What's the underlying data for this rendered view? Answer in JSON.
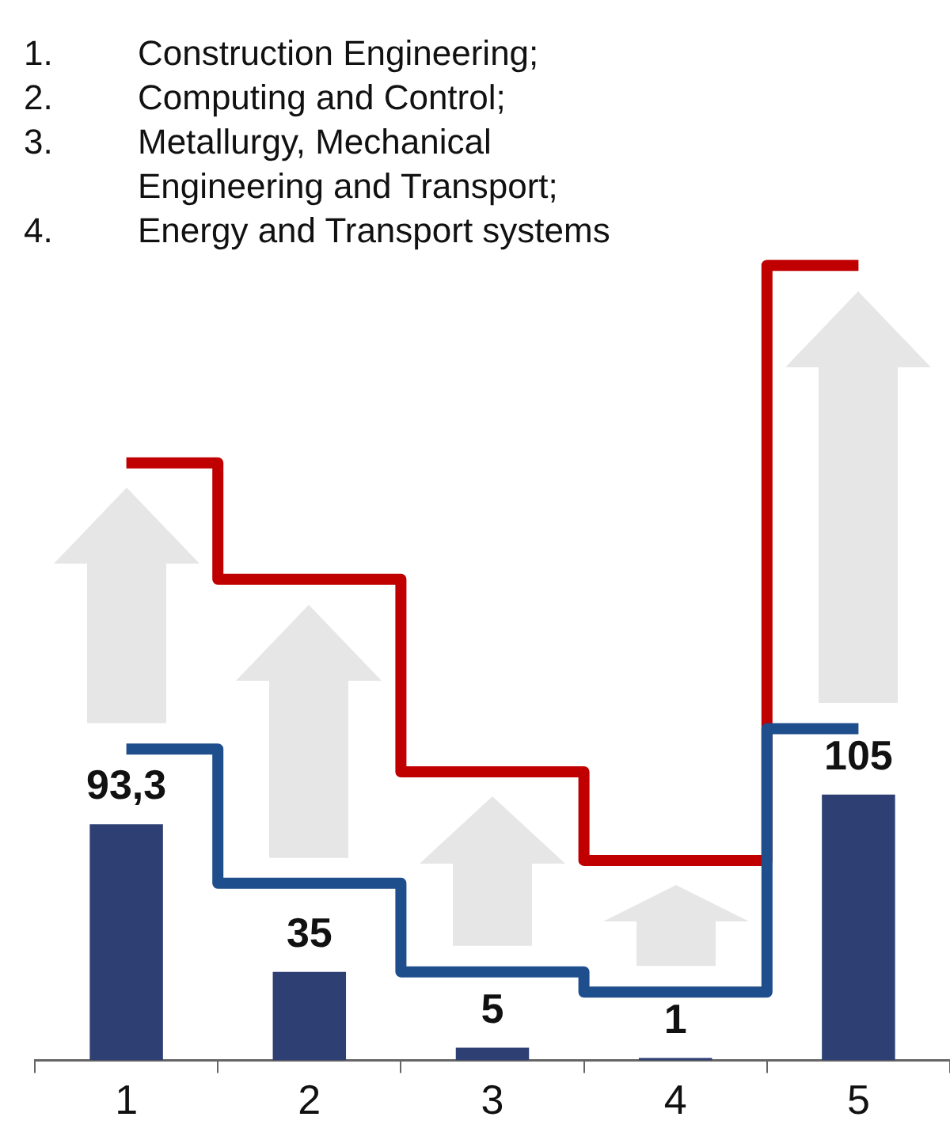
{
  "chart_data": {
    "type": "bar",
    "annotations": [
      "1. Construction Engineering;",
      "2. Computing and Control;",
      "3. Metallurgy, Mechanical Engineering and Transport;",
      "4. Energy and Transport systems"
    ],
    "categories": [
      "1",
      "2",
      "3",
      "4",
      "5"
    ],
    "series": [
      {
        "color": "#2e3f73",
        "values": [
          93.3,
          35,
          5,
          1,
          105
        ],
        "value_labels": [
          "93,3",
          "35",
          "5",
          "1",
          "105"
        ]
      },
      {
        "type": "step",
        "color": "#1f4e8c",
        "values": [
          123,
          70,
          35,
          27,
          131
        ]
      },
      {
        "type": "step",
        "color": "#c00000",
        "values": [
          236,
          190,
          114,
          79,
          314
        ]
      }
    ]
  }
}
